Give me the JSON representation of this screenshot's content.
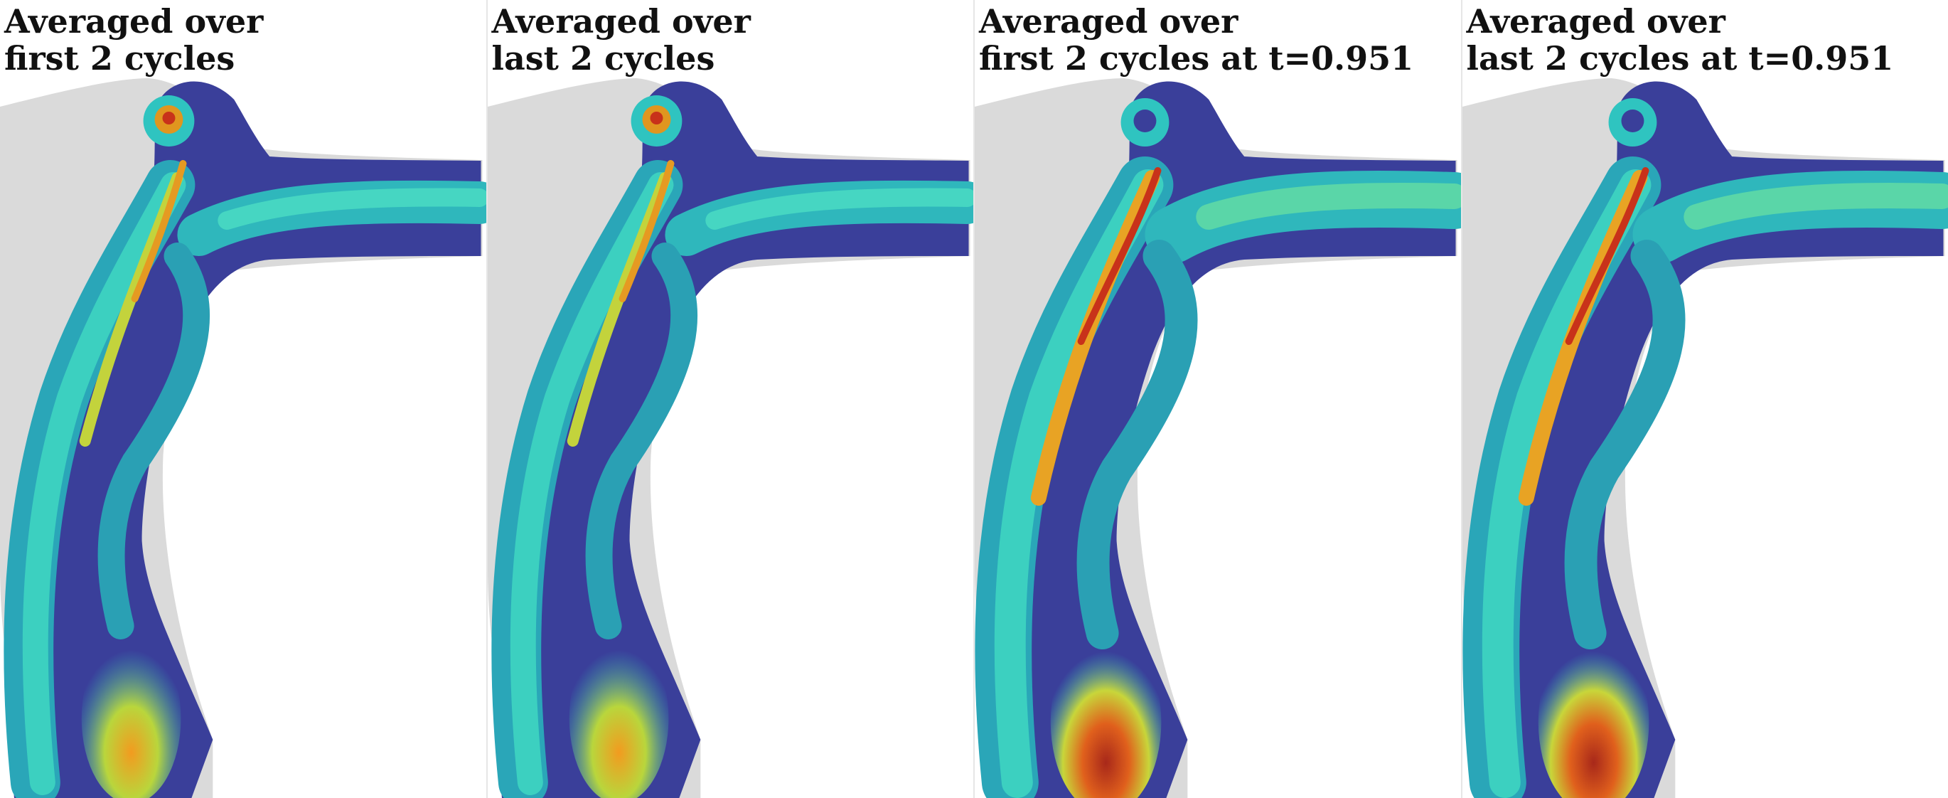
{
  "panels": [
    {
      "caption_line1": "Averaged over",
      "caption_line2": "first 2 cycles",
      "variant": "a"
    },
    {
      "caption_line1": "Averaged over",
      "caption_line2": "last 2 cycles",
      "variant": "a"
    },
    {
      "caption_line1": "Averaged over",
      "caption_line2": "first 2 cycles at t=0.951",
      "variant": "b"
    },
    {
      "caption_line1": "Averaged over",
      "caption_line2": "last 2 cycles at t=0.951",
      "variant": "b"
    }
  ],
  "colors": {
    "background": "#ffffff",
    "vessel_shadow": "#d7d7d7",
    "low": "#3b3f9a",
    "mid_low": "#2aa0b4",
    "mid": "#3dd2c0",
    "mid_high": "#c8d63a",
    "high": "#f0a020",
    "max": "#c8321a"
  }
}
